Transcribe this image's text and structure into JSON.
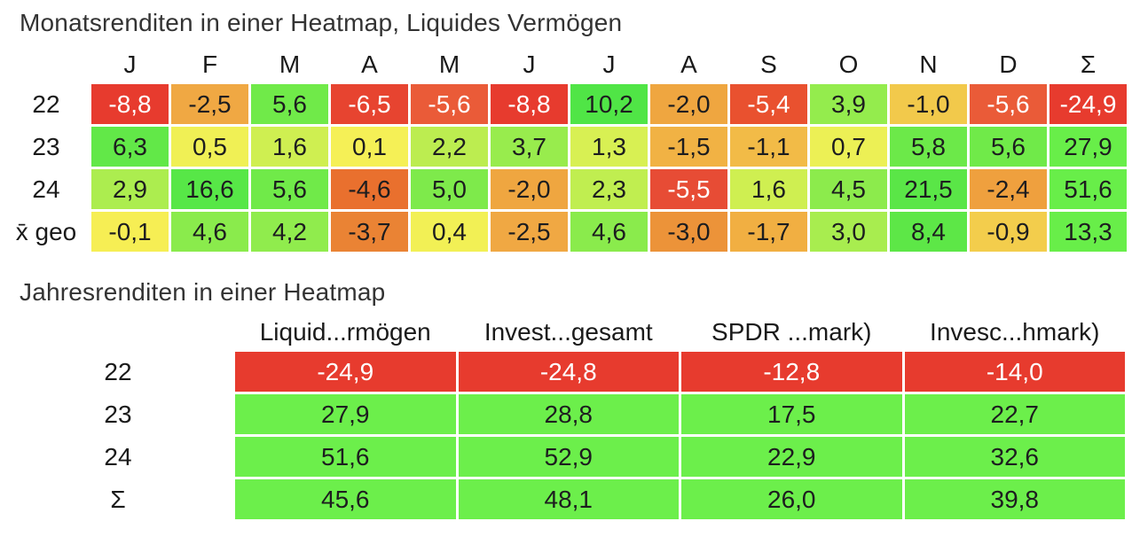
{
  "page": {
    "background": "#ffffff",
    "negative_text_color": "#ffffff",
    "positive_text_color": "#1d1d1f",
    "white_text_threshold": -5
  },
  "chart_data": [
    {
      "type": "heatmap",
      "title": "Monatsrenditen in einer Heatmap, Liquides Vermögen",
      "columns": [
        "J",
        "F",
        "M",
        "A",
        "M",
        "J",
        "J",
        "A",
        "S",
        "O",
        "N",
        "D",
        "Σ"
      ],
      "rows": [
        {
          "label": "22",
          "values": [
            "-8,8",
            "-2,5",
            "5,6",
            "-6,5",
            "-5,6",
            "-8,8",
            "10,2",
            "-2,0",
            "-5,4",
            "3,9",
            "-1,0",
            "-5,6",
            "-24,9"
          ],
          "colors": [
            "#e73b2e",
            "#f0a843",
            "#70ea49",
            "#e74430",
            "#ea5b38",
            "#e73b2e",
            "#50e546",
            "#efa640",
            "#e9512f",
            "#94ec4d",
            "#f2c94b",
            "#ea5b38",
            "#e73b2e"
          ]
        },
        {
          "label": "23",
          "values": [
            "6,3",
            "0,5",
            "1,6",
            "0,1",
            "2,2",
            "3,7",
            "1,3",
            "-1,5",
            "-1,1",
            "0,7",
            "5,8",
            "5,6",
            "27,9"
          ],
          "colors": [
            "#62e848",
            "#f0f055",
            "#cfef51",
            "#f5f056",
            "#bced50",
            "#98ec4d",
            "#d8f053",
            "#f1b244",
            "#f2bb47",
            "#ecf055",
            "#6ce949",
            "#70ea49",
            "#68ee49"
          ]
        },
        {
          "label": "24",
          "values": [
            "2,9",
            "16,6",
            "5,6",
            "-4,6",
            "5,0",
            "-2,0",
            "2,3",
            "-5,5",
            "1,6",
            "4,5",
            "21,5",
            "-2,4",
            "51,6"
          ],
          "colors": [
            "#aced4f",
            "#57e747",
            "#70ea49",
            "#e9702e",
            "#7eea4b",
            "#efa640",
            "#c0ee50",
            "#e74c35",
            "#cfef51",
            "#8ceb4c",
            "#5ae647",
            "#efa03e",
            "#68ee49"
          ]
        },
        {
          "label": "x̄ geo",
          "values": [
            "-0,1",
            "4,6",
            "4,2",
            "-3,7",
            "0,4",
            "-2,5",
            "4,6",
            "-3,0",
            "-1,7",
            "3,0",
            "8,4",
            "-0,9",
            "13,3"
          ],
          "colors": [
            "#f6ee54",
            "#8aeb4c",
            "#90ec4d",
            "#ea8334",
            "#f2f055",
            "#f0a843",
            "#8aeb4c",
            "#ec9339",
            "#f1af42",
            "#a8ed4f",
            "#5de747",
            "#f3cd4c",
            "#68ee49"
          ]
        }
      ]
    },
    {
      "type": "heatmap",
      "title": "Jahresrenditen in einer Heatmap",
      "columns": [
        "Liquid...rmögen",
        "Invest...gesamt",
        "SPDR ...mark)",
        "Invesc...hmark)"
      ],
      "rows": [
        {
          "label": "22",
          "values": [
            "-24,9",
            "-24,8",
            "-12,8",
            "-14,0"
          ],
          "colors": [
            "#e73b2e",
            "#e73b2e",
            "#e73b2e",
            "#e73b2e"
          ]
        },
        {
          "label": "23",
          "values": [
            "27,9",
            "28,8",
            "17,5",
            "22,7"
          ],
          "colors": [
            "#6cef4b",
            "#6cef4b",
            "#6cef4b",
            "#6cef4b"
          ]
        },
        {
          "label": "24",
          "values": [
            "51,6",
            "52,9",
            "22,9",
            "32,6"
          ],
          "colors": [
            "#6cef4b",
            "#6cef4b",
            "#6cef4b",
            "#6cef4b"
          ]
        },
        {
          "label": "Σ",
          "values": [
            "45,6",
            "48,1",
            "26,0",
            "39,8"
          ],
          "colors": [
            "#6cef4b",
            "#6cef4b",
            "#6cef4b",
            "#6cef4b"
          ]
        }
      ]
    }
  ]
}
